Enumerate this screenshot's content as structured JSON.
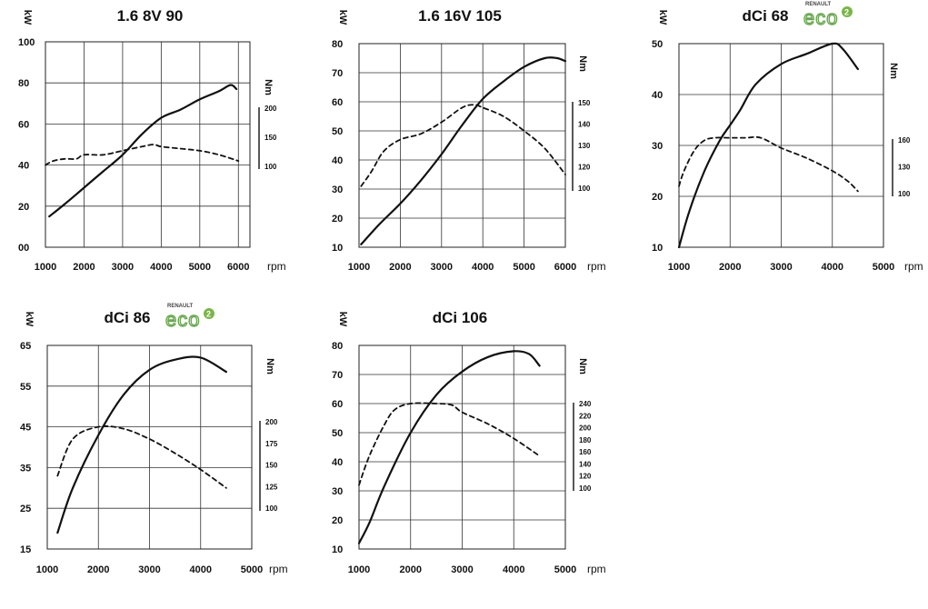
{
  "x_unit_label": "rpm",
  "y_unit_label": "kW",
  "torque_unit_label": "Nm",
  "logo": {
    "brand": "RENAULT",
    "text": "eco",
    "sup": "2",
    "color": "#7ab648"
  },
  "chart_data": [
    {
      "type": "line",
      "title": "1.6 8V 90",
      "logo": false,
      "x_ticks": [
        "1000",
        "2000",
        "3000",
        "4000",
        "5000",
        "6000"
      ],
      "xlim": [
        1000,
        6300
      ],
      "y_ticks": [
        "00",
        "20",
        "40",
        "60",
        "80",
        "100"
      ],
      "ylim": [
        0,
        100
      ],
      "y_tick_values": [
        0,
        20,
        40,
        60,
        80,
        100
      ],
      "torque_ticks": [
        "200",
        "150",
        "100"
      ],
      "series": [
        {
          "style": "solid",
          "x": [
            1100,
            1500,
            2000,
            2500,
            3000,
            3500,
            4000,
            4500,
            5000,
            5500,
            5800,
            5950
          ],
          "y": [
            15,
            21,
            29,
            37,
            45,
            55,
            63,
            67,
            72,
            76,
            79,
            77
          ]
        },
        {
          "style": "dashed",
          "x": [
            1000,
            1200,
            1500,
            1800,
            2000,
            2500,
            3000,
            3500,
            3800,
            4000,
            4500,
            5000,
            5500,
            6000
          ],
          "y": [
            40,
            42,
            43,
            43,
            45,
            45,
            47,
            49,
            50,
            49,
            48,
            47,
            45,
            42
          ]
        }
      ]
    },
    {
      "type": "line",
      "title": "1.6 16V 105",
      "logo": false,
      "x_ticks": [
        "1000",
        "2000",
        "3000",
        "4000",
        "5000",
        "6000"
      ],
      "xlim": [
        1000,
        6000
      ],
      "y_ticks": [
        "10",
        "20",
        "30",
        "40",
        "50",
        "60",
        "70",
        "80"
      ],
      "ylim": [
        10,
        80
      ],
      "y_tick_values": [
        10,
        20,
        30,
        40,
        50,
        60,
        70,
        80
      ],
      "torque_ticks": [
        "150",
        "140",
        "130",
        "120",
        "100"
      ],
      "series": [
        {
          "style": "solid",
          "x": [
            1050,
            1500,
            2000,
            2500,
            3000,
            3500,
            4000,
            4500,
            5000,
            5500,
            5800,
            6000
          ],
          "y": [
            11,
            18,
            25,
            33,
            42,
            52,
            61,
            67,
            72,
            75,
            75,
            74
          ]
        },
        {
          "style": "dashed",
          "x": [
            1050,
            1300,
            1600,
            2000,
            2500,
            3000,
            3500,
            3800,
            4000,
            4500,
            5000,
            5500,
            6000
          ],
          "y": [
            31,
            36,
            43,
            47,
            49,
            53,
            58,
            59,
            58,
            55,
            50,
            44,
            35
          ]
        }
      ]
    },
    {
      "type": "line",
      "title": "dCi 68",
      "logo": true,
      "x_ticks": [
        "1000",
        "2000",
        "3000",
        "4000",
        "5000"
      ],
      "xlim": [
        1000,
        5000
      ],
      "y_ticks": [
        "10",
        "20",
        "30",
        "40",
        "50"
      ],
      "ylim": [
        10,
        50
      ],
      "y_tick_values": [
        10,
        20,
        30,
        40,
        50
      ],
      "torque_ticks": [
        "160",
        "130",
        "100"
      ],
      "series": [
        {
          "style": "solid",
          "x": [
            1000,
            1200,
            1500,
            1800,
            2000,
            2200,
            2500,
            3000,
            3500,
            4000,
            4200,
            4500
          ],
          "y": [
            10,
            17,
            25,
            31,
            34,
            37,
            42,
            46,
            48,
            50,
            49,
            45
          ]
        },
        {
          "style": "dashed",
          "x": [
            1000,
            1100,
            1300,
            1500,
            1700,
            2000,
            2300,
            2600,
            3000,
            3500,
            4000,
            4300,
            4500
          ],
          "y": [
            22,
            25,
            29,
            31,
            31.5,
            31.5,
            31.5,
            31.5,
            29.5,
            27.5,
            25,
            23,
            21
          ]
        }
      ]
    },
    {
      "type": "line",
      "title": "dCi 86",
      "logo": true,
      "x_ticks": [
        "1000",
        "2000",
        "3000",
        "4000",
        "5000"
      ],
      "xlim": [
        1000,
        5000
      ],
      "y_ticks": [
        "15",
        "25",
        "35",
        "45",
        "55",
        "65"
      ],
      "ylim": [
        15,
        65
      ],
      "y_tick_values": [
        15,
        25,
        35,
        45,
        55,
        65
      ],
      "torque_ticks": [
        "200",
        "175",
        "150",
        "125",
        "100"
      ],
      "series": [
        {
          "style": "solid",
          "x": [
            1200,
            1500,
            2000,
            2500,
            3000,
            3500,
            4000,
            4500
          ],
          "y": [
            19,
            30,
            43,
            53,
            59,
            61.5,
            62,
            58.5
          ]
        },
        {
          "style": "dashed",
          "x": [
            1200,
            1500,
            2000,
            2500,
            3000,
            3500,
            4000,
            4500
          ],
          "y": [
            33,
            42,
            45,
            44.5,
            42,
            38.5,
            34.5,
            30
          ]
        }
      ]
    },
    {
      "type": "line",
      "title": "dCi 106",
      "logo": false,
      "x_ticks": [
        "1000",
        "2000",
        "3000",
        "4000",
        "5000"
      ],
      "xlim": [
        1000,
        5000
      ],
      "y_ticks": [
        "10",
        "20",
        "30",
        "40",
        "50",
        "60",
        "70",
        "80"
      ],
      "ylim": [
        10,
        80
      ],
      "y_tick_values": [
        10,
        20,
        30,
        40,
        50,
        60,
        70,
        80
      ],
      "torque_ticks": [
        "240",
        "220",
        "200",
        "180",
        "160",
        "140",
        "120",
        "100"
      ],
      "series": [
        {
          "style": "solid",
          "x": [
            1000,
            1200,
            1500,
            2000,
            2500,
            3000,
            3500,
            4000,
            4300,
            4500
          ],
          "y": [
            12,
            19,
            32,
            50,
            63,
            71,
            76,
            78,
            77,
            73
          ]
        },
        {
          "style": "dashed",
          "x": [
            1000,
            1200,
            1500,
            1700,
            2000,
            2500,
            2800,
            3000,
            3500,
            4000,
            4500
          ],
          "y": [
            32,
            42,
            53,
            58,
            60,
            60,
            59.5,
            57,
            53,
            48,
            42
          ]
        }
      ]
    }
  ]
}
